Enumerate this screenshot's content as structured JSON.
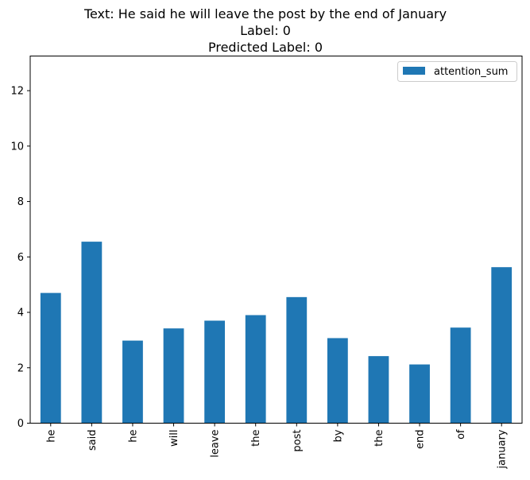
{
  "chart_data": {
    "type": "bar",
    "title_lines": [
      "Text: He said he will leave the post by the end of January",
      "Label: 0",
      "Predicted Label: 0"
    ],
    "categories": [
      "he",
      "said",
      "he",
      "will",
      "leave",
      "the",
      "post",
      "by",
      "the",
      "end",
      "of",
      "january"
    ],
    "series": [
      {
        "name": "attention_sum",
        "color": "#1f77b4",
        "values": [
          4.7,
          6.55,
          2.98,
          3.42,
          3.7,
          3.9,
          4.55,
          3.07,
          2.42,
          2.12,
          3.45,
          5.63
        ]
      }
    ],
    "xlabel": "",
    "ylabel": "",
    "ylim": [
      0,
      13.25
    ],
    "yticks": [
      0,
      2,
      4,
      6,
      8,
      10,
      12
    ],
    "xtick_rotation": 90,
    "grid": false,
    "legend_position": "top-right"
  }
}
